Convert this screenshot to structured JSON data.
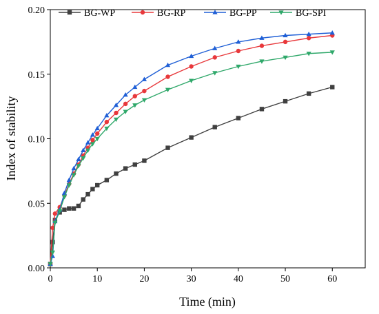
{
  "chart_data": {
    "type": "line",
    "title": "",
    "xlabel": "Time (min)",
    "ylabel": "Index of stability",
    "xlim": [
      0,
      67
    ],
    "ylim": [
      0,
      0.2
    ],
    "xticks": [
      0,
      10,
      20,
      30,
      40,
      50,
      60
    ],
    "xtick_labels": [
      "0",
      "10",
      "20",
      "30",
      "40",
      "50",
      "60"
    ],
    "yticks": [
      0,
      0.05,
      0.1,
      0.15,
      0.2
    ],
    "ytick_labels": [
      "0.00",
      "0.05",
      "0.10",
      "0.15",
      "0.20"
    ],
    "grid": false,
    "legend_position": "top-left",
    "x": [
      0,
      0.5,
      1,
      2,
      3,
      4,
      5,
      6,
      7,
      8,
      9,
      10,
      12,
      14,
      16,
      18,
      20,
      25,
      30,
      35,
      40,
      45,
      50,
      55,
      60
    ],
    "series": [
      {
        "name": "BG-WP",
        "color": "#404040",
        "marker": "square",
        "values": [
          0.003,
          0.02,
          0.037,
          0.043,
          0.045,
          0.046,
          0.046,
          0.048,
          0.053,
          0.057,
          0.061,
          0.064,
          0.068,
          0.073,
          0.077,
          0.08,
          0.083,
          0.093,
          0.101,
          0.109,
          0.116,
          0.123,
          0.129,
          0.135,
          0.14
        ]
      },
      {
        "name": "BG-RP",
        "color": "#e8383b",
        "marker": "circle",
        "values": [
          0.003,
          0.031,
          0.042,
          0.047,
          0.056,
          0.065,
          0.073,
          0.08,
          0.087,
          0.093,
          0.099,
          0.104,
          0.113,
          0.12,
          0.127,
          0.133,
          0.137,
          0.148,
          0.156,
          0.163,
          0.168,
          0.172,
          0.175,
          0.178,
          0.18
        ]
      },
      {
        "name": "BG-PP",
        "color": "#1f5fd6",
        "marker": "triangle-up",
        "values": [
          0.003,
          0.009,
          0.036,
          0.045,
          0.058,
          0.068,
          0.077,
          0.084,
          0.091,
          0.097,
          0.103,
          0.108,
          0.118,
          0.126,
          0.134,
          0.14,
          0.146,
          0.157,
          0.164,
          0.17,
          0.175,
          0.178,
          0.18,
          0.181,
          0.182
        ]
      },
      {
        "name": "BG-SPI",
        "color": "#2fa86a",
        "marker": "triangle-down",
        "values": [
          0.003,
          0.012,
          0.035,
          0.044,
          0.055,
          0.064,
          0.072,
          0.079,
          0.085,
          0.091,
          0.096,
          0.1,
          0.108,
          0.115,
          0.121,
          0.126,
          0.13,
          0.138,
          0.145,
          0.151,
          0.156,
          0.16,
          0.163,
          0.166,
          0.167
        ]
      }
    ]
  }
}
